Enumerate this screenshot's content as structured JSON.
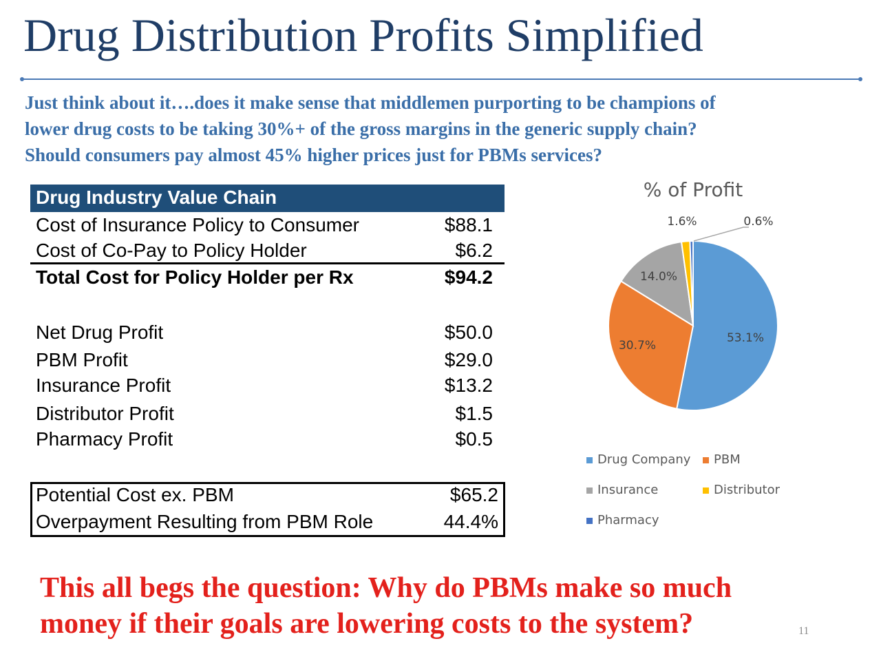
{
  "title": "Drug Distribution Profits Simplified",
  "subtitle_lines": [
    "Just think about it….does it make sense that middlemen purporting to be champions of",
    "lower drug costs to be taking 30%+ of the gross margins in the generic supply chain?",
    "Should consumers pay almost 45% higher prices just for PBMs services?"
  ],
  "table": {
    "header": "Drug Industry Value Chain",
    "rows": [
      {
        "label": "Cost of Insurance Policy to Consumer",
        "value": "$88.1"
      },
      {
        "label": "Cost of Co-Pay to Policy Holder",
        "value": "$6.2"
      },
      {
        "label": "Total Cost for Policy Holder per Rx",
        "value": "$94.2"
      },
      {
        "label": "Net Drug Profit",
        "value": "$50.0"
      },
      {
        "label": "PBM Profit",
        "value": "$29.0"
      },
      {
        "label": "Insurance Profit",
        "value": "$13.2"
      },
      {
        "label": "Distributor Profit",
        "value": "$1.5"
      },
      {
        "label": "Pharmacy Profit",
        "value": "$0.5"
      },
      {
        "label": "Potential Cost ex. PBM",
        "value": "$65.2"
      },
      {
        "label": "Overpayment Resulting from PBM Role",
        "value": "44.4%"
      }
    ]
  },
  "question_lines": [
    "This all begs the question: Why do PBMs make so much",
    "money if  their goals are lowering costs to the system?"
  ],
  "page_number": "11",
  "chart_data": {
    "type": "pie",
    "title": "% of Profit",
    "labels": [
      "Drug Company",
      "PBM",
      "Insurance",
      "Distributor",
      "Pharmacy"
    ],
    "values": [
      53.1,
      30.7,
      14.0,
      1.6,
      0.6
    ],
    "value_labels": [
      "53.1%",
      "30.7%",
      "14.0%",
      "1.6%",
      "0.6%"
    ],
    "colors": [
      "#5b9bd5",
      "#ed7d31",
      "#a5a5a5",
      "#ffc000",
      "#4472c4"
    ],
    "legend_position": "bottom"
  }
}
